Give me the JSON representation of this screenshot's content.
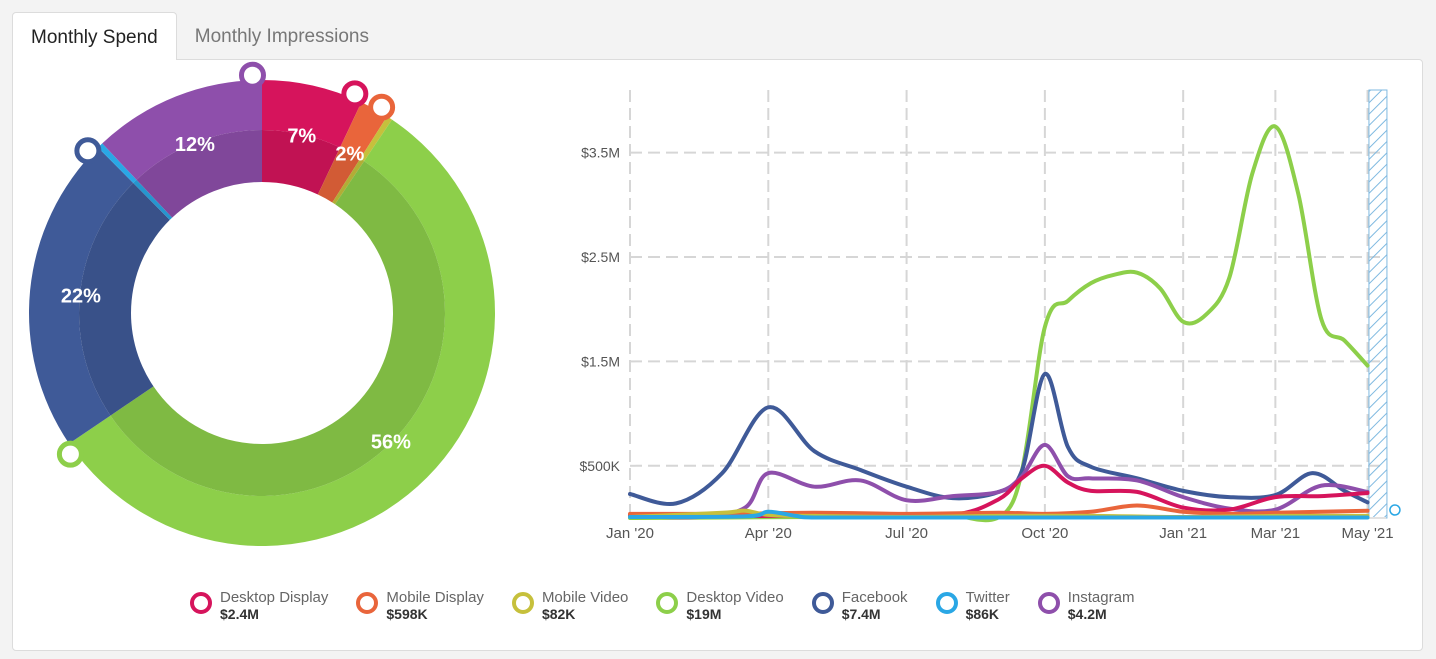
{
  "tabs": [
    {
      "label": "Monthly Spend",
      "active": true
    },
    {
      "label": "Monthly Impressions",
      "active": false
    }
  ],
  "colors": {
    "desktop_display": "#d6145c",
    "mobile_display": "#e9653b",
    "mobile_video": "#c6c03c",
    "desktop_video": "#8dcf4a",
    "facebook": "#3f5a98",
    "twitter": "#2aa7e5",
    "instagram": "#8e4fab"
  },
  "chart_data": [
    {
      "type": "pie",
      "donut": true,
      "slices": [
        {
          "key": "desktop_display",
          "label": "7%",
          "value": 7
        },
        {
          "key": "mobile_display",
          "label": "2%",
          "value": 2
        },
        {
          "key": "mobile_video",
          "label": "",
          "value": 0.4
        },
        {
          "key": "desktop_video",
          "label": "56%",
          "value": 56
        },
        {
          "key": "facebook",
          "label": "22%",
          "value": 22
        },
        {
          "key": "twitter",
          "label": "",
          "value": 0.4
        },
        {
          "key": "instagram",
          "label": "12%",
          "value": 12
        }
      ]
    },
    {
      "type": "line",
      "x_labels": [
        "Jan '20",
        "Apr '20",
        "Jul '20",
        "Oct '20",
        "Jan '21",
        "Mar '21",
        "May '21"
      ],
      "x_label_months": [
        0,
        3,
        6,
        9,
        12,
        14,
        16
      ],
      "y_ticks": [
        {
          "value": 500000,
          "label": "$500K"
        },
        {
          "value": 1500000,
          "label": "$1.5M"
        },
        {
          "value": 2500000,
          "label": "$2.5M"
        },
        {
          "value": 3500000,
          "label": "$3.5M"
        }
      ],
      "ylim": [
        0,
        4100000
      ],
      "xlim_months": [
        0,
        16.4
      ],
      "series": [
        {
          "key": "desktop_video",
          "points": [
            [
              0,
              0
            ],
            [
              4,
              10000
            ],
            [
              5.5,
              15000
            ],
            [
              6.5,
              20000
            ],
            [
              7,
              20000
            ],
            [
              8.3,
              150000
            ],
            [
              9,
              1830000
            ],
            [
              9.5,
              2080000
            ],
            [
              10,
              2250000
            ],
            [
              10.5,
              2330000
            ],
            [
              11,
              2350000
            ],
            [
              11.5,
              2200000
            ],
            [
              12,
              1880000
            ],
            [
              12.5,
              1950000
            ],
            [
              13,
              2300000
            ],
            [
              13.5,
              3300000
            ],
            [
              14,
              3750000
            ],
            [
              14.5,
              3100000
            ],
            [
              15,
              1900000
            ],
            [
              15.5,
              1700000
            ],
            [
              16,
              1460000
            ]
          ]
        },
        {
          "key": "facebook",
          "points": [
            [
              0,
              230000
            ],
            [
              1,
              140000
            ],
            [
              2,
              430000
            ],
            [
              3,
              1060000
            ],
            [
              4,
              640000
            ],
            [
              5,
              460000
            ],
            [
              6,
              300000
            ],
            [
              7,
              190000
            ],
            [
              8,
              250000
            ],
            [
              8.5,
              450000
            ],
            [
              9,
              1380000
            ],
            [
              9.5,
              680000
            ],
            [
              10,
              490000
            ],
            [
              11,
              380000
            ],
            [
              12,
              260000
            ],
            [
              13,
              200000
            ],
            [
              14,
              220000
            ],
            [
              14.8,
              430000
            ],
            [
              15.5,
              260000
            ],
            [
              16,
              150000
            ]
          ]
        },
        {
          "key": "instagram",
          "points": [
            [
              0,
              20000
            ],
            [
              1.5,
              10000
            ],
            [
              2.5,
              100000
            ],
            [
              3,
              430000
            ],
            [
              4,
              300000
            ],
            [
              5,
              360000
            ],
            [
              6,
              170000
            ],
            [
              7,
              210000
            ],
            [
              8,
              250000
            ],
            [
              8.5,
              400000
            ],
            [
              9,
              700000
            ],
            [
              9.5,
              400000
            ],
            [
              10,
              380000
            ],
            [
              11,
              360000
            ],
            [
              12,
              200000
            ],
            [
              13,
              90000
            ],
            [
              14,
              80000
            ],
            [
              15,
              310000
            ],
            [
              16,
              250000
            ]
          ]
        },
        {
          "key": "desktop_display",
          "points": [
            [
              0,
              30000
            ],
            [
              2,
              20000
            ],
            [
              3,
              20000
            ],
            [
              5,
              30000
            ],
            [
              7,
              30000
            ],
            [
              8,
              180000
            ],
            [
              8.5,
              380000
            ],
            [
              9,
              500000
            ],
            [
              9.5,
              340000
            ],
            [
              10,
              260000
            ],
            [
              11,
              250000
            ],
            [
              12,
              100000
            ],
            [
              13,
              80000
            ],
            [
              14,
              200000
            ],
            [
              15,
              210000
            ],
            [
              16,
              240000
            ]
          ]
        },
        {
          "key": "mobile_display",
          "points": [
            [
              0,
              40000
            ],
            [
              2,
              40000
            ],
            [
              4,
              50000
            ],
            [
              6,
              40000
            ],
            [
              8,
              50000
            ],
            [
              9,
              40000
            ],
            [
              10,
              60000
            ],
            [
              11,
              120000
            ],
            [
              12,
              60000
            ],
            [
              13,
              40000
            ],
            [
              14,
              50000
            ],
            [
              15,
              60000
            ],
            [
              16,
              70000
            ]
          ]
        },
        {
          "key": "mobile_video",
          "points": [
            [
              0,
              10000
            ],
            [
              2,
              50000
            ],
            [
              2.5,
              70000
            ],
            [
              3,
              30000
            ],
            [
              4,
              20000
            ],
            [
              6,
              10000
            ],
            [
              8,
              20000
            ],
            [
              10,
              20000
            ],
            [
              12,
              10000
            ],
            [
              14,
              20000
            ],
            [
              16,
              20000
            ]
          ]
        },
        {
          "key": "twitter",
          "points": [
            [
              0,
              10000
            ],
            [
              2.5,
              15000
            ],
            [
              3,
              60000
            ],
            [
              3.6,
              20000
            ],
            [
              4,
              5000
            ],
            [
              6,
              5000
            ],
            [
              8,
              5000
            ],
            [
              10,
              5000
            ],
            [
              12,
              5000
            ],
            [
              14,
              5000
            ],
            [
              16,
              5000
            ]
          ]
        }
      ]
    }
  ],
  "legend": [
    {
      "key": "desktop_display",
      "name": "Desktop Display",
      "value": "$2.4M"
    },
    {
      "key": "mobile_display",
      "name": "Mobile Display",
      "value": "$598K"
    },
    {
      "key": "mobile_video",
      "name": "Mobile Video",
      "value": "$82K"
    },
    {
      "key": "desktop_video",
      "name": "Desktop Video",
      "value": "$19M"
    },
    {
      "key": "facebook",
      "name": "Facebook",
      "value": "$7.4M"
    },
    {
      "key": "twitter",
      "name": "Twitter",
      "value": "$86K"
    },
    {
      "key": "instagram",
      "name": "Instagram",
      "value": "$4.2M"
    }
  ]
}
